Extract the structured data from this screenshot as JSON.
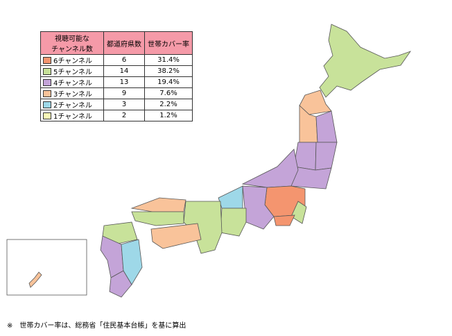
{
  "table": {
    "header": [
      [
        "視聴可能な",
        "チャンネル数"
      ],
      "都道府県数",
      "世帯カバー率"
    ],
    "rows": [
      {
        "color": "#f4956f",
        "label": "6チャンネル",
        "count": 6,
        "share": "31.4%"
      },
      {
        "color": "#c8e29a",
        "label": "5チャンネル",
        "count": 14,
        "share": "38.2%"
      },
      {
        "color": "#c4a4d8",
        "label": "4チャンネル",
        "count": 13,
        "share": "19.4%"
      },
      {
        "color": "#f9c39a",
        "label": "3チャンネル",
        "count": 9,
        "share": "7.6%"
      },
      {
        "color": "#9ed8e8",
        "label": "2チャンネル",
        "count": 3,
        "share": "2.2%"
      },
      {
        "color": "#fafab8",
        "label": "1チャンネル",
        "count": 2,
        "share": "1.2%"
      }
    ]
  },
  "note": "※　世帯カバー率は、総務省「住民基本台帳」を基に算出"
}
